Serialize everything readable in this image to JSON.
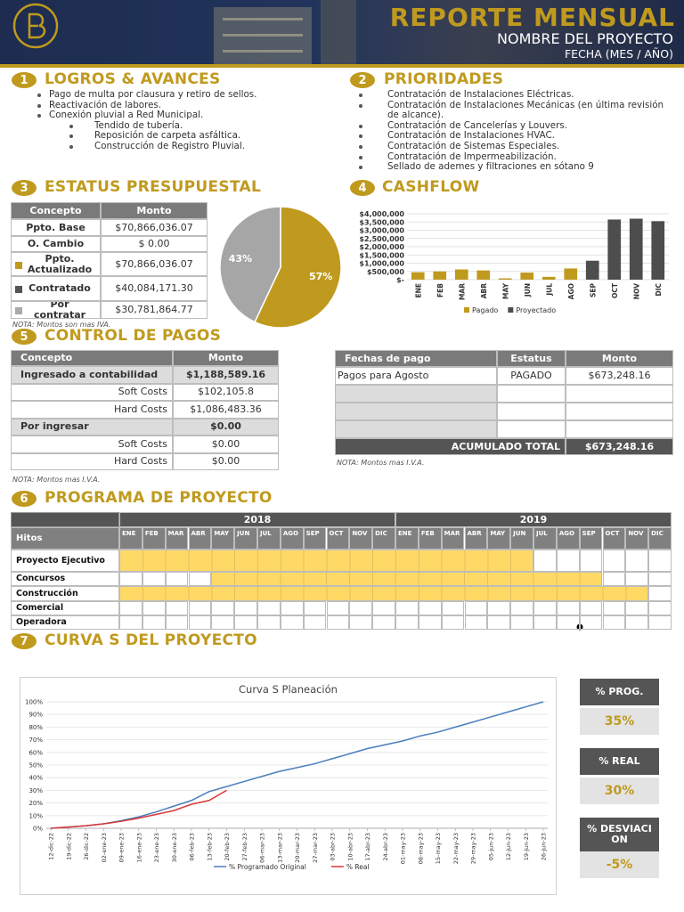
{
  "header": {
    "title": "REPORTE MENSUAL",
    "project": "NOMBRE DEL PROYECTO",
    "date": "FECHA (MES / AÑO)"
  },
  "sections": [
    {
      "number": 1,
      "title": "LOGROS & AVANCES"
    },
    {
      "number": 2,
      "title": "PRIORIDADES"
    },
    {
      "number": 3,
      "title": "ESTATUS PRESUPUESTAL"
    },
    {
      "number": 4,
      "title": "CASHFLOW"
    },
    {
      "number": 5,
      "title": "CONTROL DE PAGOS"
    },
    {
      "number": 6,
      "title": "PROGRAMA DE PROYECTO"
    },
    {
      "number": 7,
      "title": "CURVA S DEL PROYECTO"
    }
  ],
  "logros": [
    {
      "text": "Pago de multa por clausura y retiro de sellos."
    },
    {
      "text": "Reactivación de labores."
    },
    {
      "text": "Conexión pluvial a Red Municipal.",
      "children": [
        "Tendido de tubería.",
        "Reposición de carpeta asfáltica.",
        "Construcción de Registro Pluvial."
      ]
    }
  ],
  "prioridades": [
    "Contratación de Instalaciones Eléctricas.",
    "Contratación de Instalaciones Mecánicas (en última revisión de alcance).",
    "Contratación de Cancelerías y Louvers.",
    "Contratación de Instalaciones HVAC.",
    "Contratación de Sistemas Especiales.",
    "Contratación de Impermeabilización.",
    "Sellado de ademes y filtraciones en sótano 9"
  ],
  "budget": {
    "headers": [
      "Concepto",
      "Monto"
    ],
    "rows": [
      [
        "Ppto. Base",
        "$70,866,036.07"
      ],
      [
        "O. Cambio",
        "$ 0.00"
      ],
      [
        "Ppto. Actualizado",
        "$70,866,036.07"
      ],
      [
        "Contratado",
        "$40,084,171.30"
      ],
      [
        "Por contratar",
        "$30,781,864.77"
      ]
    ],
    "note": "NOTA: Montos son mas IVA."
  },
  "pie": {
    "type": "pie",
    "values": [
      57,
      43
    ],
    "value_labels": [
      "57%",
      "43%"
    ],
    "colors": [
      "#c09a1e",
      "#a6a6a6"
    ]
  },
  "cashflow": {
    "type": "bar",
    "categories": [
      "ENE",
      "FEB",
      "MAR",
      "ABR",
      "MAY",
      "JUN",
      "JUL",
      "AGO",
      "SEP",
      "OCT",
      "NOV",
      "DIC"
    ],
    "series": [
      {
        "name": "Pagado",
        "color": "#c09a1e",
        "values": [
          450000,
          500000,
          620000,
          560000,
          80000,
          430000,
          170000,
          680000,
          null,
          null,
          null,
          null
        ]
      },
      {
        "name": "Proyectado",
        "color": "#4d4d4d",
        "values": [
          null,
          null,
          null,
          null,
          null,
          null,
          null,
          null,
          1150000,
          3650000,
          3700000,
          3550000
        ]
      }
    ],
    "ylim": [
      0,
      4000000
    ],
    "yticks": [
      {
        "value": 0,
        "label": "$-"
      },
      {
        "value": 500000,
        "label": "$500,000"
      },
      {
        "value": 1000000,
        "label": "$1,000,000"
      },
      {
        "value": 1500000,
        "label": "$1,500,000"
      },
      {
        "value": 2000000,
        "label": "$2,000,000"
      },
      {
        "value": 2500000,
        "label": "$2,500,000"
      },
      {
        "value": 3000000,
        "label": "$3,000,000"
      },
      {
        "value": 3500000,
        "label": "$3,500,000"
      },
      {
        "value": 4000000,
        "label": "$4,000,000"
      }
    ],
    "grid": true,
    "legend": "bottom"
  },
  "payments": {
    "headers": [
      "Concepto",
      "Monto"
    ],
    "rows": [
      [
        "Ingresado a contabilidad",
        "$1,188,589.16"
      ],
      [
        "Soft Costs",
        "$102,105.8"
      ],
      [
        "Hard Costs",
        "$1,086,483.36"
      ],
      [
        "Por ingresar",
        "$0.00"
      ],
      [
        "Soft Costs",
        "$0.00"
      ],
      [
        "Hard Costs",
        "$0.00"
      ]
    ],
    "note": "NOTA: Montos mas I.V.A."
  },
  "payment_dates": {
    "headers": [
      "Fechas de pago",
      "Estatus",
      "Monto"
    ],
    "rows": [
      [
        "Pagos para Agosto",
        "PAGADO",
        "$673,248.16"
      ]
    ],
    "total": {
      "label": "ACUMULADO TOTAL",
      "value": "$673,248.16"
    },
    "note": "NOTA: Montos mas I.V.A."
  },
  "schedule": {
    "label_header": "Hitos",
    "years": [
      "2018",
      "2019"
    ],
    "months": [
      "ENE",
      "FEB",
      "MAR",
      "ABR",
      "MAY",
      "JUN",
      "JUL",
      "AGO",
      "SEP",
      "OCT",
      "NOV",
      "DIC",
      "ENE",
      "FEB",
      "MAR",
      "ABR",
      "MAY",
      "JUN",
      "JUL",
      "AGO",
      "SEP",
      "OCT",
      "NOV",
      "DIC"
    ],
    "rows": [
      {
        "name": "Proyecto Ejecutivo",
        "bars": [
          [
            0,
            17
          ]
        ]
      },
      {
        "name": "Concursos",
        "bars": [
          [
            4,
            20
          ]
        ]
      },
      {
        "name": "Construcción",
        "bars": [
          [
            0,
            22
          ]
        ]
      },
      {
        "name": "Comercial",
        "bars": []
      },
      {
        "name": "Operadora",
        "bars": []
      }
    ],
    "color": "#ffd966"
  },
  "scurve": {
    "type": "line",
    "title": "Curva S Planeación",
    "categories": [
      "12-dic-22",
      "19-dic-22",
      "26-dic-22",
      "02-ene-23",
      "09-ene-23",
      "16-ene-23",
      "23-ene-23",
      "30-ene-23",
      "06-feb-23",
      "13-feb-23",
      "20-feb-23",
      "27-feb-23",
      "06-mar-23",
      "13-mar-23",
      "20-mar-23",
      "27-mar-23",
      "03-abr-23",
      "10-abr-23",
      "17-abr-23",
      "24-abr-23",
      "01-may-23",
      "08-may-23",
      "15-may-23",
      "22-may-23",
      "29-may-23",
      "05-jun-23",
      "12-jun-23",
      "19-jun-23",
      "26-jun-23"
    ],
    "series": [
      {
        "name": "% Programado Original",
        "color": "#4a7ebb",
        "values": [
          0,
          1,
          2,
          3.5,
          6,
          9,
          13,
          17.5,
          22,
          29,
          33,
          37,
          41,
          45,
          48,
          51,
          55,
          59,
          63,
          66,
          69,
          73,
          76,
          80,
          84,
          88,
          92,
          96,
          100
        ]
      },
      {
        "name": "% Real",
        "color": "#d9383a",
        "values": [
          0,
          1,
          2,
          3.5,
          5.5,
          8,
          11,
          14,
          19,
          22,
          30,
          null,
          null,
          null,
          null,
          null,
          null,
          null,
          null,
          null,
          null,
          null,
          null,
          null,
          null,
          null,
          null,
          null,
          null
        ]
      }
    ],
    "ylim": [
      0,
      100
    ],
    "yticks": [
      {
        "value": 0,
        "label": "0%"
      },
      {
        "value": 10,
        "label": "10%"
      },
      {
        "value": 20,
        "label": "20%"
      },
      {
        "value": 30,
        "label": "30%"
      },
      {
        "value": 40,
        "label": "40%"
      },
      {
        "value": 50,
        "label": "50%"
      },
      {
        "value": 60,
        "label": "60%"
      },
      {
        "value": 70,
        "label": "70%"
      },
      {
        "value": 80,
        "label": "80%"
      },
      {
        "value": 90,
        "label": "90%"
      },
      {
        "value": 100,
        "label": "100%"
      }
    ],
    "grid": true,
    "legend": "bottom"
  },
  "kpis": [
    {
      "label": "% PROG.",
      "value": "35%"
    },
    {
      "label": "% REAL",
      "value": "30%"
    },
    {
      "label": "% DESVIACION",
      "value": "-5%"
    }
  ]
}
